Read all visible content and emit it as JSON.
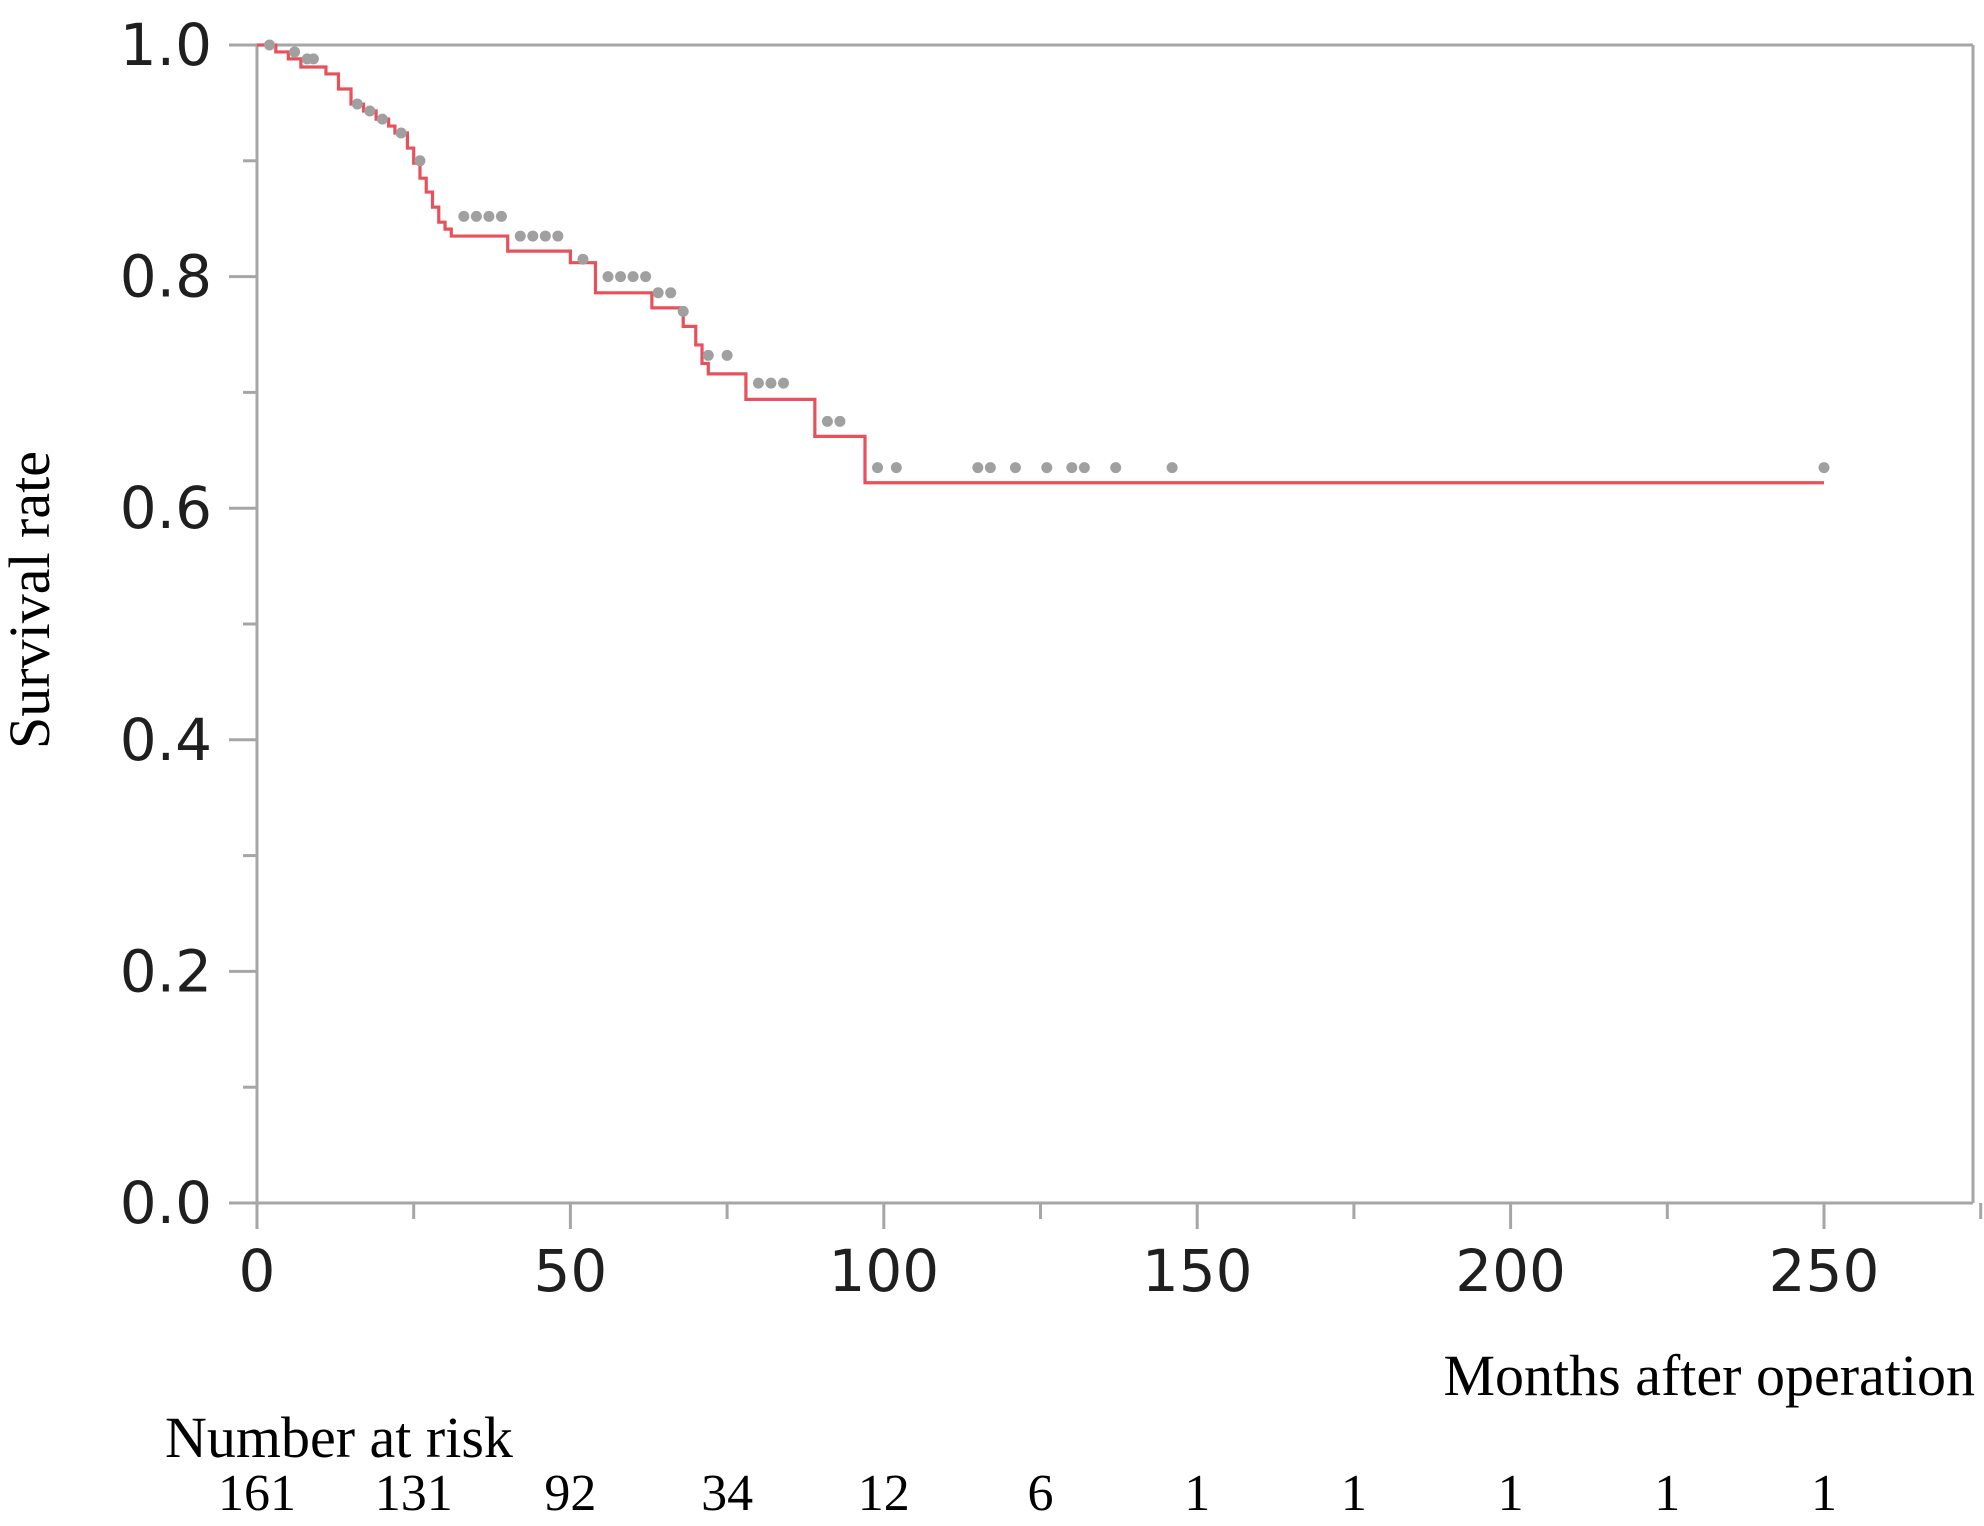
{
  "chart_data": {
    "type": "line",
    "subtype": "kaplan-meier",
    "title": "",
    "xlabel": "Months after operation",
    "ylabel": "Survival rate",
    "xlim": [
      0,
      275
    ],
    "ylim": [
      0,
      1.0
    ],
    "x_ticks": [
      0,
      50,
      100,
      150,
      200,
      250
    ],
    "x_tick_labels": [
      "0",
      "50",
      "100",
      "150",
      "200",
      "250"
    ],
    "x_minor_ticks": [
      25,
      75,
      125,
      175,
      225,
      275
    ],
    "y_ticks": [
      0,
      0.2,
      0.4,
      0.6,
      0.8,
      1.0
    ],
    "y_tick_labels": [
      "0.0",
      "0.2",
      "0.4",
      "0.6",
      "0.8",
      "1.0"
    ],
    "y_minor_ticks": [
      0.1,
      0.3,
      0.5,
      0.7,
      0.9
    ],
    "grid": false,
    "colors": {
      "curve": "#e8505b",
      "censor": "#a0a0a0",
      "axis": "#a6a6a6",
      "text": "#1f1f1f"
    },
    "series": [
      {
        "steps": [
          [
            0,
            1.0
          ],
          [
            3,
            0.994
          ],
          [
            5,
            0.988
          ],
          [
            7,
            0.981
          ],
          [
            11,
            0.975
          ],
          [
            13,
            0.962
          ],
          [
            15,
            0.949
          ],
          [
            17,
            0.943
          ],
          [
            19,
            0.936
          ],
          [
            21,
            0.93
          ],
          [
            22,
            0.924
          ],
          [
            24,
            0.911
          ],
          [
            25,
            0.898
          ],
          [
            26,
            0.885
          ],
          [
            27,
            0.873
          ],
          [
            28,
            0.86
          ],
          [
            29,
            0.847
          ],
          [
            30,
            0.841
          ],
          [
            31,
            0.835
          ],
          [
            40,
            0.822
          ],
          [
            50,
            0.812
          ],
          [
            54,
            0.786
          ],
          [
            63,
            0.773
          ],
          [
            68,
            0.757
          ],
          [
            70,
            0.741
          ],
          [
            71,
            0.725
          ],
          [
            72,
            0.716
          ],
          [
            78,
            0.694
          ],
          [
            89,
            0.662
          ],
          [
            97,
            0.622
          ],
          [
            250,
            0.622
          ]
        ],
        "censored": [
          [
            2,
            1.0
          ],
          [
            6,
            0.994
          ],
          [
            8,
            0.988
          ],
          [
            9,
            0.988
          ],
          [
            16,
            0.949
          ],
          [
            18,
            0.943
          ],
          [
            20,
            0.936
          ],
          [
            23,
            0.924
          ],
          [
            26,
            0.9
          ],
          [
            33,
            0.852
          ],
          [
            35,
            0.852
          ],
          [
            37,
            0.852
          ],
          [
            39,
            0.852
          ],
          [
            42,
            0.835
          ],
          [
            44,
            0.835
          ],
          [
            46,
            0.835
          ],
          [
            48,
            0.835
          ],
          [
            52,
            0.815
          ],
          [
            56,
            0.8
          ],
          [
            58,
            0.8
          ],
          [
            60,
            0.8
          ],
          [
            62,
            0.8
          ],
          [
            64,
            0.786
          ],
          [
            66,
            0.786
          ],
          [
            68,
            0.77
          ],
          [
            72,
            0.732
          ],
          [
            75,
            0.732
          ],
          [
            80,
            0.708
          ],
          [
            82,
            0.708
          ],
          [
            84,
            0.708
          ],
          [
            91,
            0.675
          ],
          [
            93,
            0.675
          ],
          [
            99,
            0.635
          ],
          [
            102,
            0.635
          ],
          [
            115,
            0.635
          ],
          [
            117,
            0.635
          ],
          [
            121,
            0.635
          ],
          [
            126,
            0.635
          ],
          [
            130,
            0.635
          ],
          [
            132,
            0.635
          ],
          [
            137,
            0.635
          ],
          [
            146,
            0.635
          ],
          [
            250,
            0.635
          ]
        ]
      }
    ],
    "risk_table": {
      "label": "Number at risk",
      "times": [
        0,
        25,
        50,
        75,
        100,
        125,
        150,
        175,
        200,
        225,
        250
      ],
      "values": [
        "161",
        "131",
        "92",
        "34",
        "12",
        "6",
        "1",
        "1",
        "1",
        "1",
        "1"
      ]
    }
  }
}
